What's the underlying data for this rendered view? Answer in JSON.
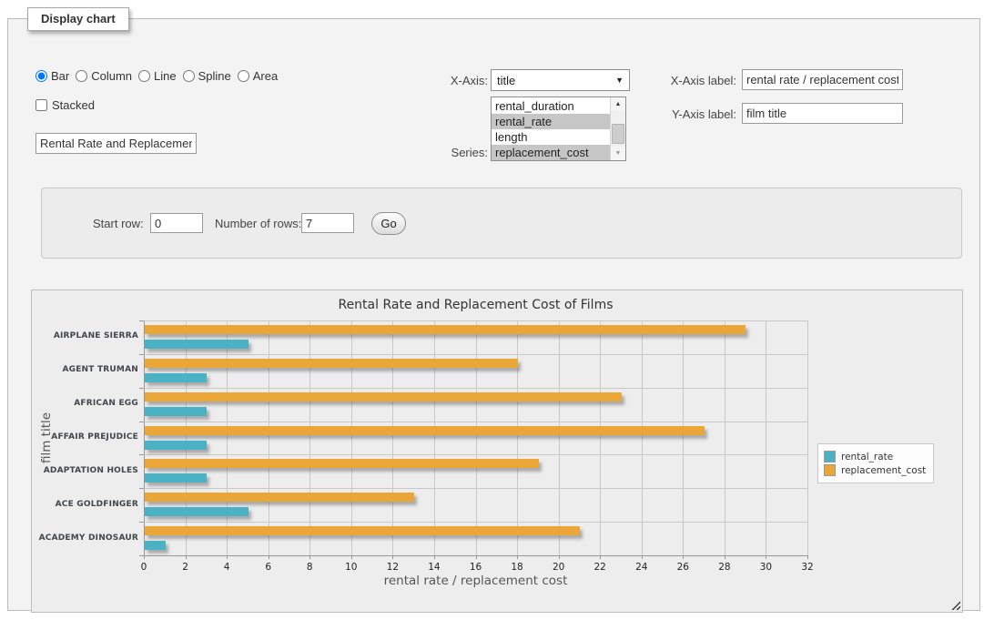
{
  "panel": {
    "legend": "Display chart"
  },
  "controls": {
    "chart_types": [
      {
        "label": "Bar",
        "selected": true
      },
      {
        "label": "Column",
        "selected": false
      },
      {
        "label": "Line",
        "selected": false
      },
      {
        "label": "Spline",
        "selected": false
      },
      {
        "label": "Area",
        "selected": false
      }
    ],
    "stacked_label": "Stacked",
    "stacked_checked": false,
    "chart_title_value": "Rental Rate and Replacement Cost of Films",
    "x_axis_label": "X-Axis:",
    "x_axis_selected": "title",
    "series_label": "Series:",
    "series_options": [
      {
        "label": "rental_duration",
        "selected": false
      },
      {
        "label": "rental_rate",
        "selected": true
      },
      {
        "label": "length",
        "selected": false
      },
      {
        "label": "replacement_cost",
        "selected": true
      }
    ],
    "x_axis_label_label": "X-Axis label:",
    "x_axis_label_value": "rental rate / replacement cost",
    "y_axis_label_label": "Y-Axis label:",
    "y_axis_label_value": "film title"
  },
  "rows_panel": {
    "start_row_label": "Start row:",
    "start_row_value": "0",
    "num_rows_label": "Number of rows:",
    "num_rows_value": "7",
    "go_label": "Go"
  },
  "chart_data": {
    "type": "bar",
    "orientation": "horizontal",
    "title": "Rental Rate and Replacement Cost of Films",
    "xlabel": "rental rate / replacement cost",
    "ylabel": "film title",
    "categories": [
      "AIRPLANE SIERRA",
      "AGENT TRUMAN",
      "AFRICAN EGG",
      "AFFAIR PREJUDICE",
      "ADAPTATION HOLES",
      "ACE GOLDFINGER",
      "ACADEMY DINOSAUR"
    ],
    "series": [
      {
        "name": "rental_rate",
        "color": "#4BB1C4",
        "values": [
          4.99,
          2.99,
          2.99,
          2.99,
          2.99,
          4.99,
          0.99
        ]
      },
      {
        "name": "replacement_cost",
        "color": "#EAA636",
        "values": [
          28.99,
          17.99,
          22.99,
          26.99,
          18.99,
          12.99,
          20.99
        ]
      }
    ],
    "xlim": [
      0,
      32
    ],
    "xticks": [
      0,
      2,
      4,
      6,
      8,
      10,
      12,
      14,
      16,
      18,
      20,
      22,
      24,
      26,
      28,
      30,
      32
    ],
    "grid": true,
    "legend_position": "right"
  }
}
